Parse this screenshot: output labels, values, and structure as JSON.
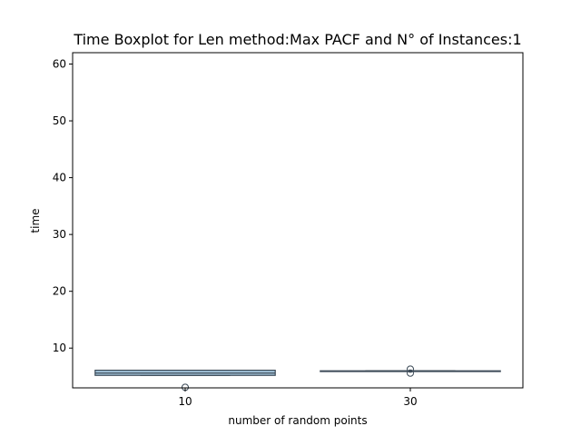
{
  "chart_data": {
    "type": "boxplot",
    "title": "Time Boxplot for Len method:Max PACF and N° of Instances:1",
    "xlabel": "number of random points",
    "ylabel": "time",
    "categories": [
      "10",
      "30"
    ],
    "ylim": [
      3.0,
      62.0
    ],
    "yticks": [
      10,
      20,
      30,
      40,
      50,
      60
    ],
    "grid": false,
    "boxes": [
      {
        "category": "10",
        "whisker_low": 5.2,
        "q1": 5.2,
        "median": 5.6,
        "q3": 6.1,
        "whisker_high": 6.1,
        "outliers": [
          3.1
        ],
        "color": "#a6c8e0"
      },
      {
        "category": "30",
        "whisker_low": 5.9,
        "q1": 5.9,
        "median": 5.95,
        "q3": 6.0,
        "whisker_high": 6.0,
        "outliers": [
          5.6,
          6.3
        ],
        "color": "#7fa7c7"
      }
    ],
    "colors": {
      "edge": "#3c4a57",
      "box_10": "#a6c8e0",
      "box_30": "#7fa7c7"
    }
  }
}
